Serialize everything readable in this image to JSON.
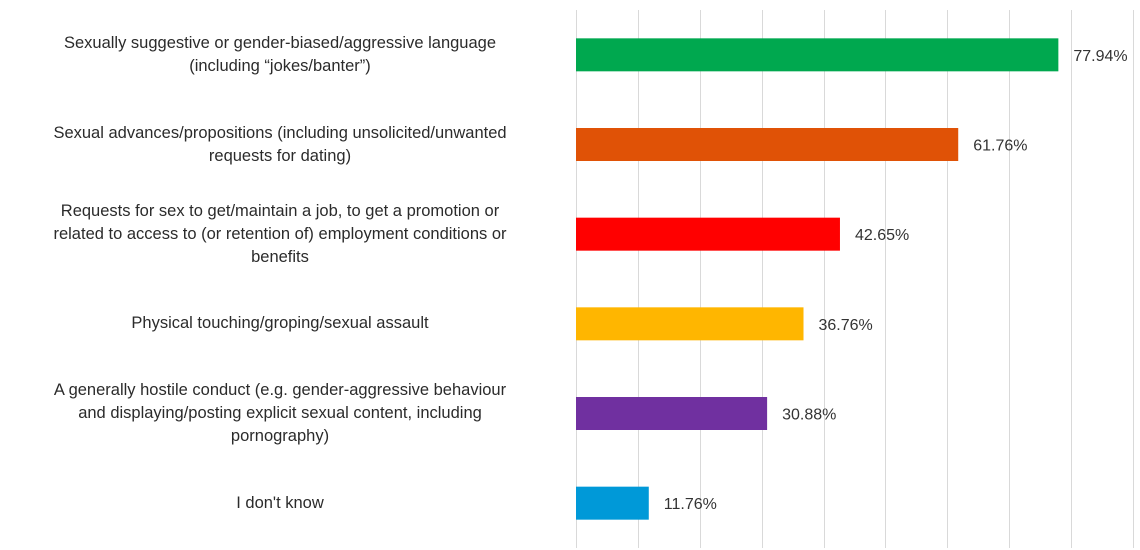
{
  "chart_data": {
    "type": "bar",
    "orientation": "horizontal",
    "categories": [
      "Sexually suggestive or gender-biased/aggressive language\n(including “jokes/banter”)",
      "Sexual advances/propositions (including unsolicited/unwanted\nrequests for dating)",
      "Requests for sex to get/maintain a job, to get a promotion or\nrelated to access to (or retention of) employment conditions or\nbenefits",
      "Physical touching/groping/sexual assault",
      "A generally hostile conduct (e.g. gender-aggressive behaviour\nand displaying/posting explicit sexual content, including\npornography)",
      "I don't know"
    ],
    "values": [
      77.94,
      61.76,
      42.65,
      36.76,
      30.88,
      11.76
    ],
    "value_labels": [
      "77.94%",
      "61.76%",
      "42.65%",
      "36.76%",
      "30.88%",
      "11.76%"
    ],
    "colors": [
      "#00a84f",
      "#e05206",
      "#ff0000",
      "#ffb600",
      "#7030a0",
      "#0099d8"
    ],
    "xlim": [
      0,
      90
    ],
    "x_grid_step": 10,
    "grid": true,
    "title": "",
    "xlabel": "",
    "ylabel": ""
  }
}
